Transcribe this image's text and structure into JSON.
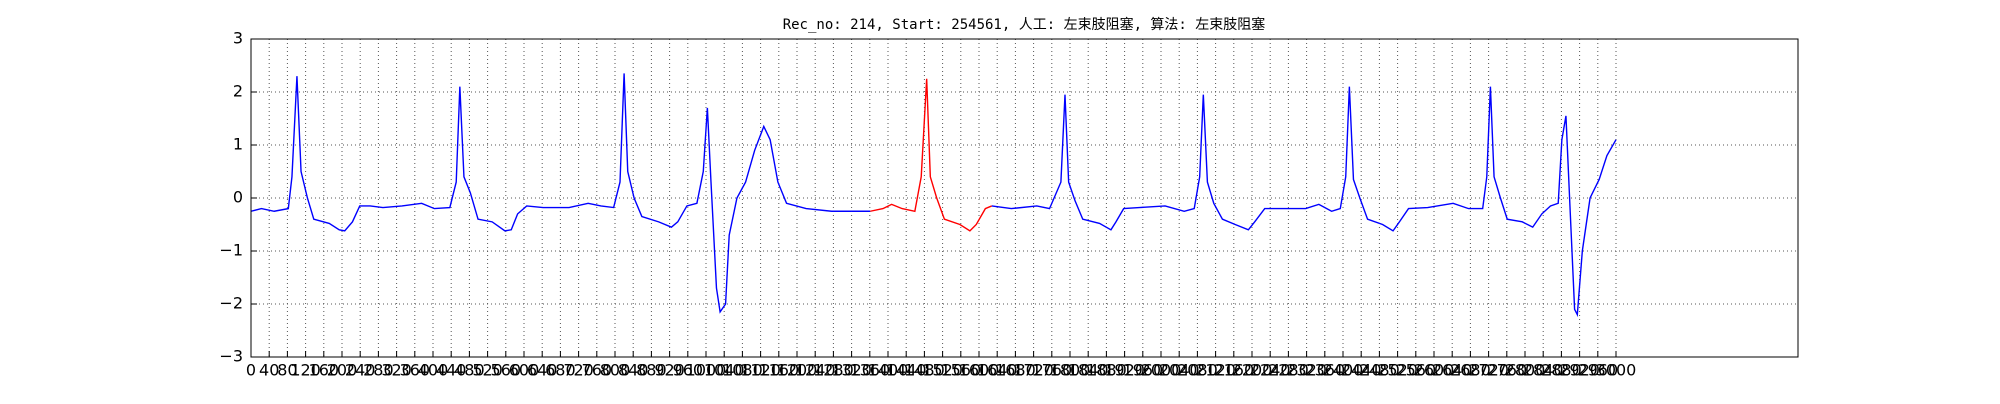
{
  "chart_data": {
    "type": "line",
    "title": "Rec_no: 214, Start: 254561, 人工: 左束肢阻塞, 算法: 左束肢阻塞",
    "grid": true,
    "xlim": [
      0,
      3400
    ],
    "ylim": [
      -3,
      3
    ],
    "yticks": [
      {
        "value": -3,
        "label": "−3"
      },
      {
        "value": -2,
        "label": "−2"
      },
      {
        "value": -1,
        "label": "−1"
      },
      0,
      1,
      2,
      3
    ],
    "xticks": [
      0,
      40,
      80,
      120,
      160,
      200,
      240,
      280,
      320,
      360,
      400,
      440,
      480,
      520,
      560,
      600,
      640,
      680,
      720,
      760,
      800,
      840,
      880,
      920,
      960,
      1000,
      1040,
      1080,
      1120,
      1160,
      1200,
      1240,
      1280,
      1320,
      1360,
      1400,
      1440,
      1480,
      1520,
      1560,
      1600,
      1640,
      1680,
      1720,
      1760,
      1800,
      1840,
      1880,
      1920,
      1960,
      2000,
      2040,
      2080,
      2120,
      2160,
      2200,
      2240,
      2280,
      2320,
      2360,
      2400,
      2440,
      2480,
      2520,
      2560,
      2600,
      2640,
      2680,
      2720,
      2760,
      2800,
      2840,
      2880,
      2920,
      2960,
      3000
    ],
    "series": [
      {
        "color": "#0000ff",
        "x": [
          0,
          23,
          51,
          82,
          90,
          101,
          110,
          124,
          138,
          172,
          194,
          206,
          223,
          239,
          262,
          290,
          332,
          375,
          403,
          437,
          451,
          459,
          468,
          482,
          499,
          530,
          558,
          572,
          586,
          606,
          642,
          699,
          741,
          769,
          797,
          811,
          820,
          828,
          842,
          859,
          896,
          924,
          938,
          958,
          980,
          994,
          1003,
          1011,
          1023,
          1031,
          1043,
          1051,
          1068,
          1087,
          1107,
          1127,
          1141,
          1158,
          1177,
          1220,
          1276,
          1361
        ],
        "values": [
          -0.25,
          -0.2,
          -0.25,
          -0.2,
          0.4,
          2.3,
          0.5,
          0,
          -0.4,
          -0.48,
          -0.6,
          -0.62,
          -0.45,
          -0.15,
          -0.15,
          -0.18,
          -0.15,
          -0.1,
          -0.2,
          -0.18,
          0.3,
          2.1,
          0.4,
          0.1,
          -0.4,
          -0.45,
          -0.62,
          -0.6,
          -0.3,
          -0.15,
          -0.18,
          -0.18,
          -0.1,
          -0.15,
          -0.18,
          0.3,
          2.35,
          0.5,
          0,
          -0.35,
          -0.45,
          -0.55,
          -0.45,
          -0.15,
          -0.1,
          0.5,
          1.7,
          0.3,
          -1.7,
          -2.15,
          -2.0,
          -0.7,
          0,
          0.3,
          0.9,
          1.35,
          1.1,
          0.3,
          -0.1,
          -0.2,
          -0.25,
          -0.25
        ]
      },
      {
        "color": "#ff0000",
        "x": [
          1361,
          1389,
          1408,
          1431,
          1459,
          1473,
          1485,
          1493,
          1507,
          1524,
          1558,
          1580,
          1594,
          1614,
          1628
        ],
        "values": [
          -0.25,
          -0.2,
          -0.12,
          -0.2,
          -0.25,
          0.4,
          2.25,
          0.4,
          0,
          -0.4,
          -0.5,
          -0.62,
          -0.5,
          -0.2,
          -0.15
        ]
      },
      {
        "color": "#0000ff",
        "x": [
          1628,
          1671,
          1727,
          1755,
          1780,
          1789,
          1797,
          1811,
          1828,
          1865,
          1890,
          1901,
          1918,
          1952,
          2009,
          2051,
          2073,
          2085,
          2093,
          2102,
          2116,
          2135,
          2163,
          2192,
          2206,
          2228,
          2262,
          2318,
          2347,
          2375,
          2394,
          2406,
          2414,
          2423,
          2437,
          2454,
          2487,
          2510,
          2524,
          2544,
          2586,
          2642,
          2676,
          2707,
          2716,
          2724,
          2732,
          2746,
          2761,
          2794,
          2817,
          2837,
          2856,
          2873,
          2881,
          2890,
          2898,
          2909,
          2915,
          2926,
          2943,
          2963,
          2980,
          3000
        ],
        "values": [
          -0.15,
          -0.2,
          -0.15,
          -0.2,
          0.3,
          1.95,
          0.3,
          -0.05,
          -0.4,
          -0.48,
          -0.6,
          -0.45,
          -0.2,
          -0.18,
          -0.15,
          -0.25,
          -0.2,
          0.4,
          1.95,
          0.3,
          -0.1,
          -0.4,
          -0.5,
          -0.6,
          -0.45,
          -0.2,
          -0.2,
          -0.2,
          -0.12,
          -0.25,
          -0.2,
          0.4,
          2.1,
          0.35,
          0,
          -0.4,
          -0.5,
          -0.62,
          -0.45,
          -0.2,
          -0.18,
          -0.1,
          -0.2,
          -0.2,
          0.4,
          2.1,
          0.4,
          0,
          -0.4,
          -0.45,
          -0.55,
          -0.3,
          -0.15,
          -0.1,
          1.1,
          1.55,
          0,
          -2.1,
          -2.2,
          -1.0,
          0,
          0.35,
          0.8,
          1.1
        ]
      }
    ]
  }
}
